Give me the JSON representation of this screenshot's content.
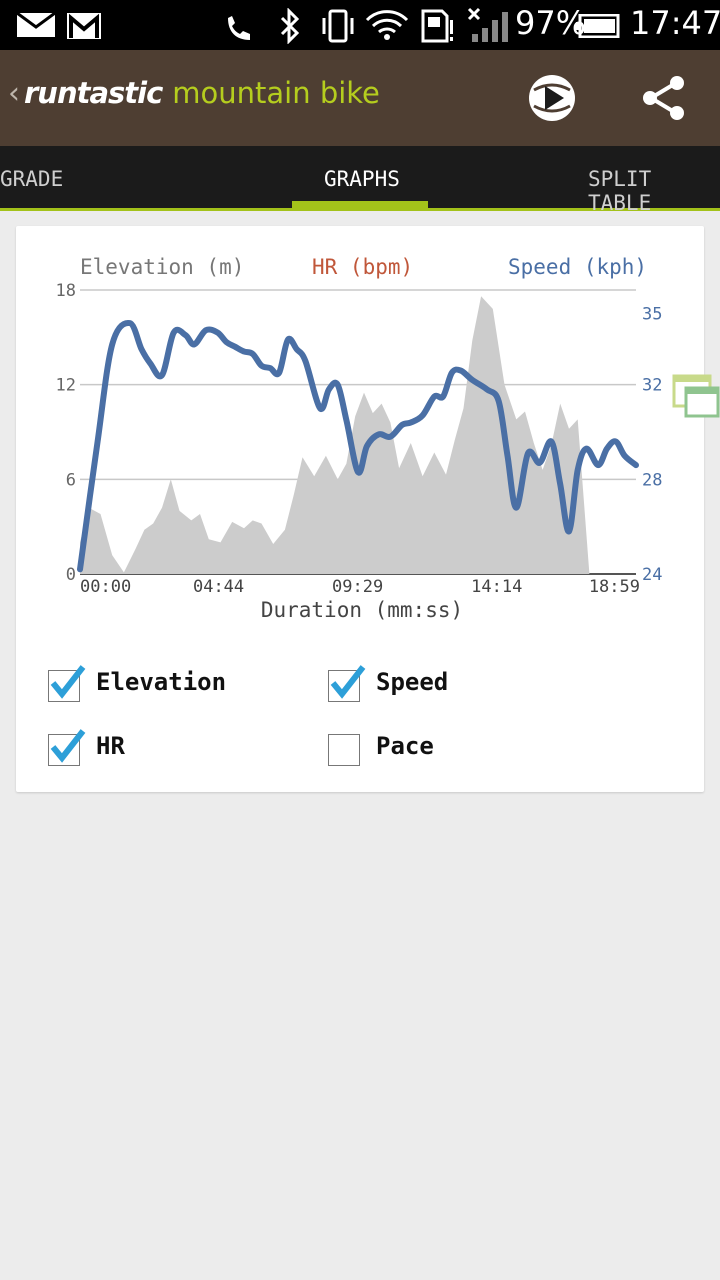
{
  "status_bar": {
    "battery": "97%",
    "time": "17:47",
    "icons": [
      "mail-icon",
      "gmail-icon",
      "call-icon",
      "bluetooth-icon",
      "vibrate-icon",
      "wifi-icon",
      "sd-card-icon",
      "signal-icon",
      "battery-icon"
    ]
  },
  "app_bar": {
    "brand": "runtastic",
    "product": "mountain bike"
  },
  "tabs": [
    {
      "label": "GRADE"
    },
    {
      "label": "GRAPHS",
      "active": true
    },
    {
      "label": "SPLIT TABLE"
    }
  ],
  "chart": {
    "axis_titles": {
      "left": "Elevation (m)",
      "middle": "HR (bpm)",
      "right": "Speed (kph)"
    },
    "xlabel": "Duration (mm:ss)"
  },
  "colors": {
    "speed": "#4a6fa5",
    "hr": "#c0573a",
    "elevation_fill": "#cccccc",
    "accent": "#a3c21a",
    "appbar": "#4e3e32"
  },
  "chart_data": {
    "type": "area",
    "x_ticks": [
      "00:00",
      "04:44",
      "09:29",
      "14:14",
      "18:59"
    ],
    "xlabel": "Duration (mm:ss)",
    "y_left": {
      "label": "Elevation (m)",
      "ticks": [
        "0",
        "6",
        "12",
        "18"
      ],
      "lim": [
        0,
        18
      ]
    },
    "y_right": {
      "label": "Speed (kph)",
      "ticks": [
        "24",
        "28",
        "32",
        "35"
      ],
      "lim": [
        24,
        36
      ]
    },
    "grid": true,
    "series": [
      {
        "name": "Elevation (m)",
        "axis": "left",
        "type": "area",
        "x": [
          0.0,
          0.3,
          0.7,
          1.1,
          1.5,
          1.9,
          2.2,
          2.5,
          2.8,
          3.1,
          3.4,
          3.8,
          4.1,
          4.4,
          4.8,
          5.2,
          5.6,
          5.9,
          6.2,
          6.6,
          7.0,
          7.3,
          7.6,
          8.0,
          8.4,
          8.8,
          9.1,
          9.4,
          9.7,
          10.0,
          10.3,
          10.6,
          10.9,
          11.3,
          11.7,
          12.1,
          12.5,
          12.8,
          13.1,
          13.4,
          13.7,
          14.1,
          14.5,
          14.9,
          15.2,
          15.5,
          15.8,
          16.1,
          16.4,
          16.7,
          17.0,
          17.4,
          17.8,
          18.1,
          18.4,
          18.7,
          18.99
        ],
        "values": [
          2.0,
          4.2,
          3.8,
          1.2,
          0.1,
          1.6,
          2.8,
          3.2,
          4.2,
          6.0,
          4.0,
          3.4,
          3.8,
          2.2,
          2.0,
          3.3,
          2.9,
          3.4,
          3.2,
          1.9,
          2.8,
          5.0,
          7.4,
          6.2,
          7.5,
          6.0,
          7.0,
          10.0,
          11.5,
          10.2,
          10.8,
          9.6,
          6.7,
          8.3,
          6.2,
          7.7,
          6.3,
          8.5,
          10.5,
          14.8,
          17.6,
          16.8,
          12.0,
          9.8,
          10.3,
          8.3,
          6.6,
          8.2,
          10.8,
          9.2,
          9.8,
          0,
          0,
          0,
          0,
          0,
          0
        ]
      },
      {
        "name": "Speed (kph)",
        "axis": "right",
        "type": "line",
        "x": [
          0.0,
          0.6,
          1.1,
          1.7,
          2.1,
          2.4,
          2.8,
          3.2,
          3.6,
          3.9,
          4.3,
          4.7,
          5.0,
          5.3,
          5.6,
          5.9,
          6.2,
          6.5,
          6.8,
          7.1,
          7.4,
          7.7,
          8.2,
          8.5,
          8.8,
          9.1,
          9.5,
          9.8,
          10.2,
          10.6,
          11.0,
          11.3,
          11.7,
          12.1,
          12.4,
          12.7,
          13.0,
          13.4,
          13.9,
          14.3,
          14.6,
          14.9,
          15.3,
          15.7,
          16.1,
          16.4,
          16.7,
          17.0,
          17.3,
          17.7,
          18.0,
          18.3,
          18.6,
          18.99
        ],
        "values": [
          24.2,
          29.6,
          33.7,
          34.6,
          33.5,
          32.9,
          32.4,
          34.2,
          34.1,
          33.7,
          34.3,
          34.2,
          33.8,
          33.6,
          33.4,
          33.3,
          32.8,
          32.7,
          32.5,
          33.9,
          33.5,
          33.0,
          31.0,
          31.8,
          32.0,
          30.5,
          28.3,
          29.4,
          29.9,
          29.8,
          30.3,
          30.4,
          30.7,
          31.5,
          31.5,
          32.5,
          32.6,
          32.2,
          31.8,
          31.3,
          29.0,
          26.8,
          29.1,
          28.7,
          29.6,
          27.8,
          25.8,
          28.4,
          29.3,
          28.6,
          29.3,
          29.6,
          29.0,
          28.6
        ]
      },
      {
        "name": "HR (bpm)",
        "axis": "right",
        "type": "line",
        "values": []
      }
    ]
  },
  "checkboxes": [
    {
      "label": "Elevation",
      "checked": true
    },
    {
      "label": "Speed",
      "checked": true
    },
    {
      "label": "HR",
      "checked": true
    },
    {
      "label": "Pace",
      "checked": false
    }
  ]
}
